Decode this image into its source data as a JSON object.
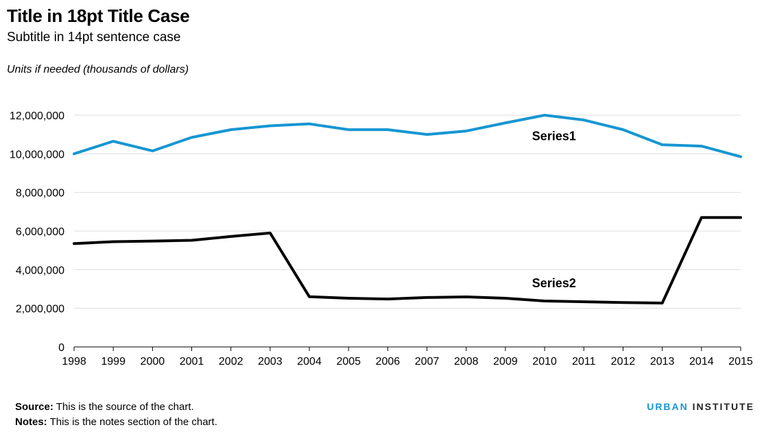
{
  "header": {
    "title": "Title in 18pt Title Case",
    "subtitle": "Subtitle in 14pt sentence case",
    "units": "Units if needed (thousands of dollars)"
  },
  "footer": {
    "source_label": "Source:",
    "source_text": "This is the source of the chart.",
    "notes_label": "Notes:",
    "notes_text": "This is the notes section of the chart.",
    "brand_urban": "URBAN",
    "brand_institute": "INSTITUTE"
  },
  "chart_data": {
    "type": "line",
    "x": [
      1998,
      1999,
      2000,
      2001,
      2002,
      2003,
      2004,
      2005,
      2006,
      2007,
      2008,
      2009,
      2010,
      2011,
      2012,
      2013,
      2014,
      2015
    ],
    "series": [
      {
        "name": "Series1",
        "color": "#1696d2",
        "values": [
          10000000,
          10650000,
          10150000,
          10850000,
          11250000,
          11450000,
          11550000,
          11250000,
          11250000,
          11000000,
          11180000,
          11600000,
          12000000,
          11750000,
          11250000,
          10470000,
          10400000,
          9850000
        ]
      },
      {
        "name": "Series2",
        "color": "#000000",
        "values": [
          5350000,
          5450000,
          5480000,
          5520000,
          5720000,
          5900000,
          2600000,
          2520000,
          2480000,
          2560000,
          2590000,
          2520000,
          2380000,
          2340000,
          2300000,
          2270000,
          6700000,
          6700000
        ]
      }
    ],
    "ylim": [
      0,
      12000000
    ],
    "yticks": [
      0,
      2000000,
      4000000,
      6000000,
      8000000,
      10000000,
      12000000
    ],
    "ytick_labels": [
      "0",
      "2,000,000",
      "4,000,000",
      "6,000,000",
      "8,000,000",
      "10,000,000",
      "12,000,000"
    ],
    "grid": true,
    "legend": "inline labels"
  }
}
